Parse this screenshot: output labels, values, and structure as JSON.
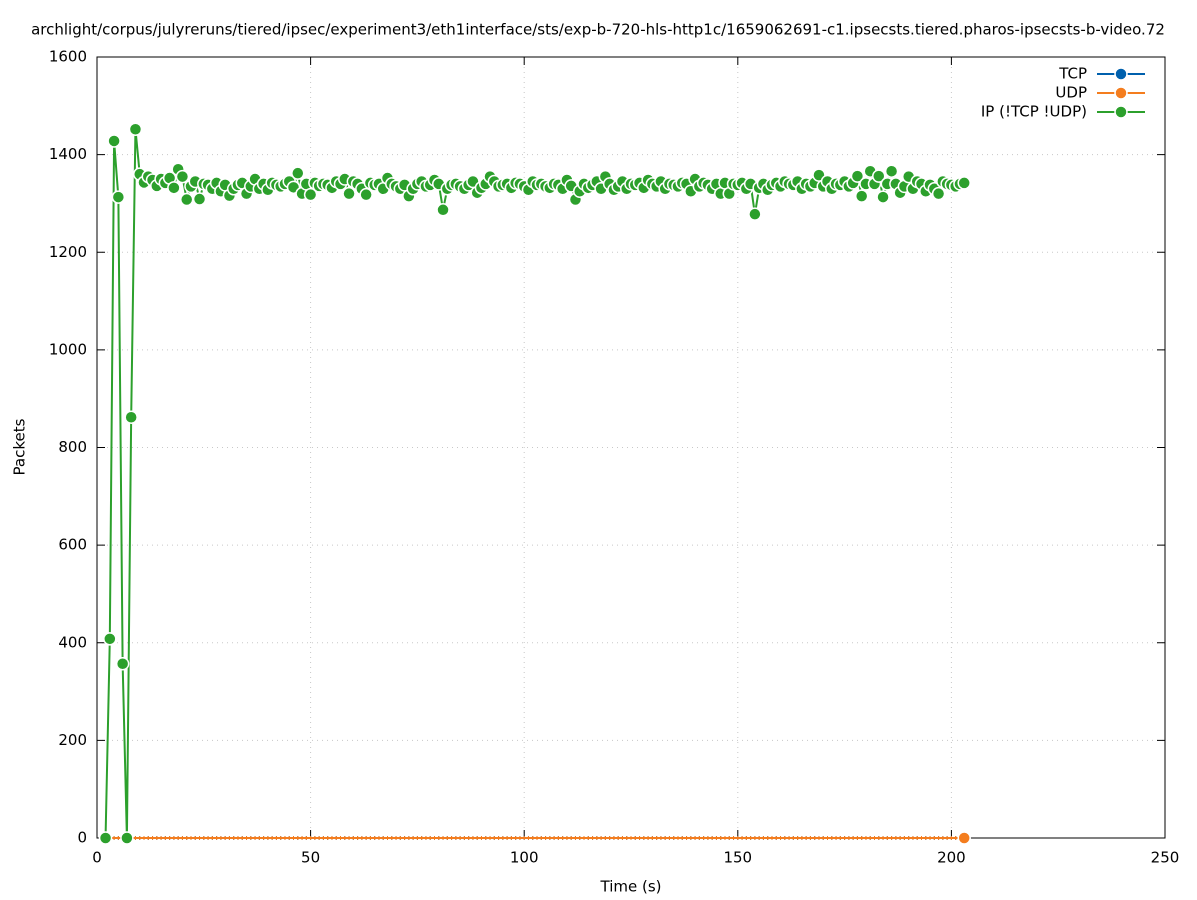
{
  "chart_data": {
    "type": "linespoints",
    "title": "archlight/corpus/julyreruns/tiered/ipsec/experiment3/eth1interface/sts/exp-b-720-hls-http1c/1659062691-c1.ipsecsts.tiered.pharos-ipsecsts-b-video.72",
    "x_label": "Time (s)",
    "y_label": "Packets",
    "xlim": [
      0,
      250
    ],
    "xticks": [
      0,
      50,
      100,
      150,
      200,
      250
    ],
    "ylim": [
      0,
      1600
    ],
    "yticks": [
      0,
      200,
      400,
      600,
      800,
      1000,
      1200,
      1400,
      1600
    ],
    "grid": true,
    "legend": "top-right",
    "x": [
      2,
      3,
      4,
      5,
      6,
      7,
      8,
      9,
      10,
      11,
      12,
      13,
      14,
      15,
      16,
      17,
      18,
      19,
      20,
      21,
      22,
      23,
      24,
      25,
      26,
      27,
      28,
      29,
      30,
      31,
      32,
      33,
      34,
      35,
      36,
      37,
      38,
      39,
      40,
      41,
      42,
      43,
      44,
      45,
      46,
      47,
      48,
      49,
      50,
      51,
      52,
      53,
      54,
      55,
      56,
      57,
      58,
      59,
      60,
      61,
      62,
      63,
      64,
      65,
      66,
      67,
      68,
      69,
      70,
      71,
      72,
      73,
      74,
      75,
      76,
      77,
      78,
      79,
      80,
      81,
      82,
      83,
      84,
      85,
      86,
      87,
      88,
      89,
      90,
      91,
      92,
      93,
      94,
      95,
      96,
      97,
      98,
      99,
      100,
      101,
      102,
      103,
      104,
      105,
      106,
      107,
      108,
      109,
      110,
      111,
      112,
      113,
      114,
      115,
      116,
      117,
      118,
      119,
      120,
      121,
      122,
      123,
      124,
      125,
      126,
      127,
      128,
      129,
      130,
      131,
      132,
      133,
      134,
      135,
      136,
      137,
      138,
      139,
      140,
      141,
      142,
      143,
      144,
      145,
      146,
      147,
      148,
      149,
      150,
      151,
      152,
      153,
      154,
      155,
      156,
      157,
      158,
      159,
      160,
      161,
      162,
      163,
      164,
      165,
      166,
      167,
      168,
      169,
      170,
      171,
      172,
      173,
      174,
      175,
      176,
      177,
      178,
      179,
      180,
      181,
      182,
      183,
      184,
      185,
      186,
      187,
      188,
      189,
      190,
      191,
      192,
      193,
      194,
      195,
      196,
      197,
      198,
      199,
      200,
      201,
      202,
      203
    ],
    "series": [
      {
        "name": "TCP",
        "color": "#0060ad",
        "values": [
          0,
          0,
          0,
          0,
          0,
          0,
          0,
          0,
          0,
          0,
          0,
          0,
          0,
          0,
          0,
          0,
          0,
          0,
          0,
          0,
          0,
          0,
          0,
          0,
          0,
          0,
          0,
          0,
          0,
          0,
          0,
          0,
          0,
          0,
          0,
          0,
          0,
          0,
          0,
          0,
          0,
          0,
          0,
          0,
          0,
          0,
          0,
          0,
          0,
          0,
          0,
          0,
          0,
          0,
          0,
          0,
          0,
          0,
          0,
          0,
          0,
          0,
          0,
          0,
          0,
          0,
          0,
          0,
          0,
          0,
          0,
          0,
          0,
          0,
          0,
          0,
          0,
          0,
          0,
          0,
          0,
          0,
          0,
          0,
          0,
          0,
          0,
          0,
          0,
          0,
          0,
          0,
          0,
          0,
          0,
          0,
          0,
          0,
          0,
          0,
          0,
          0,
          0,
          0,
          0,
          0,
          0,
          0,
          0,
          0,
          0,
          0,
          0,
          0,
          0,
          0,
          0,
          0,
          0,
          0,
          0,
          0,
          0,
          0,
          0,
          0,
          0,
          0,
          0,
          0,
          0,
          0,
          0,
          0,
          0,
          0,
          0,
          0,
          0,
          0,
          0,
          0,
          0,
          0,
          0,
          0,
          0,
          0,
          0,
          0,
          0,
          0,
          0,
          0,
          0,
          0,
          0,
          0,
          0,
          0,
          0,
          0,
          0,
          0,
          0,
          0,
          0,
          0,
          0,
          0,
          0,
          0,
          0,
          0,
          0,
          0,
          0,
          0,
          0,
          0,
          0,
          0,
          0,
          0,
          0,
          0,
          0,
          0,
          0,
          0,
          0,
          0,
          0,
          0,
          0,
          0,
          0,
          0,
          0,
          0,
          0,
          0
        ]
      },
      {
        "name": "UDP",
        "color": "#f47d1e",
        "values": [
          0,
          0,
          0,
          0,
          0,
          0,
          0,
          0,
          0,
          0,
          0,
          0,
          0,
          0,
          0,
          0,
          0,
          0,
          0,
          0,
          0,
          0,
          0,
          0,
          0,
          0,
          0,
          0,
          0,
          0,
          0,
          0,
          0,
          0,
          0,
          0,
          0,
          0,
          0,
          0,
          0,
          0,
          0,
          0,
          0,
          0,
          0,
          0,
          0,
          0,
          0,
          0,
          0,
          0,
          0,
          0,
          0,
          0,
          0,
          0,
          0,
          0,
          0,
          0,
          0,
          0,
          0,
          0,
          0,
          0,
          0,
          0,
          0,
          0,
          0,
          0,
          0,
          0,
          0,
          0,
          0,
          0,
          0,
          0,
          0,
          0,
          0,
          0,
          0,
          0,
          0,
          0,
          0,
          0,
          0,
          0,
          0,
          0,
          0,
          0,
          0,
          0,
          0,
          0,
          0,
          0,
          0,
          0,
          0,
          0,
          0,
          0,
          0,
          0,
          0,
          0,
          0,
          0,
          0,
          0,
          0,
          0,
          0,
          0,
          0,
          0,
          0,
          0,
          0,
          0,
          0,
          0,
          0,
          0,
          0,
          0,
          0,
          0,
          0,
          0,
          0,
          0,
          0,
          0,
          0,
          0,
          0,
          0,
          0,
          0,
          0,
          0,
          0,
          0,
          0,
          0,
          0,
          0,
          0,
          0,
          0,
          0,
          0,
          0,
          0,
          0,
          0,
          0,
          0,
          0,
          0,
          0,
          0,
          0,
          0,
          0,
          0,
          0,
          0,
          0,
          0,
          0,
          0,
          0,
          0,
          0,
          0,
          0,
          0,
          0,
          0,
          0,
          0,
          0,
          0,
          0,
          0,
          0,
          0,
          0,
          0,
          0
        ]
      },
      {
        "name": "IP (!TCP  !UDP)",
        "color": "#2ca02c",
        "values": [
          0,
          408,
          1428,
          1313,
          357,
          0,
          862,
          1452,
          1360,
          1343,
          1355,
          1348,
          1336,
          1350,
          1342,
          1352,
          1332,
          1370,
          1355,
          1308,
          1335,
          1345,
          1309,
          1340,
          1338,
          1330,
          1342,
          1325,
          1338,
          1316,
          1330,
          1338,
          1342,
          1320,
          1335,
          1350,
          1330,
          1340,
          1328,
          1342,
          1338,
          1335,
          1340,
          1345,
          1333,
          1362,
          1320,
          1340,
          1318,
          1342,
          1336,
          1340,
          1338,
          1332,
          1345,
          1340,
          1350,
          1320,
          1345,
          1340,
          1330,
          1318,
          1342,
          1338,
          1340,
          1330,
          1352,
          1340,
          1335,
          1330,
          1338,
          1315,
          1330,
          1340,
          1345,
          1335,
          1338,
          1348,
          1340,
          1287,
          1330,
          1338,
          1340,
          1335,
          1330,
          1338,
          1345,
          1322,
          1332,
          1340,
          1355,
          1345,
          1335,
          1338,
          1340,
          1332,
          1342,
          1340,
          1335,
          1328,
          1345,
          1338,
          1340,
          1335,
          1332,
          1340,
          1338,
          1330,
          1348,
          1336,
          1308,
          1325,
          1340,
          1332,
          1338,
          1345,
          1330,
          1355,
          1340,
          1328,
          1335,
          1345,
          1330,
          1340,
          1338,
          1342,
          1332,
          1348,
          1340,
          1335,
          1345,
          1330,
          1340,
          1338,
          1335,
          1342,
          1340,
          1325,
          1350,
          1335,
          1342,
          1338,
          1330,
          1340,
          1320,
          1342,
          1320,
          1340,
          1338,
          1342,
          1330,
          1340,
          1278,
          1332,
          1340,
          1328,
          1338,
          1342,
          1335,
          1345,
          1340,
          1338,
          1345,
          1330,
          1340,
          1335,
          1342,
          1358,
          1335,
          1345,
          1330,
          1340,
          1338,
          1345,
          1335,
          1342,
          1356,
          1315,
          1340,
          1366,
          1340,
          1356,
          1313,
          1340,
          1366,
          1340,
          1322,
          1335,
          1355,
          1330,
          1345,
          1340,
          1325,
          1338,
          1330,
          1320,
          1345,
          1340,
          1338,
          1335,
          1340,
          1342
        ]
      }
    ]
  }
}
